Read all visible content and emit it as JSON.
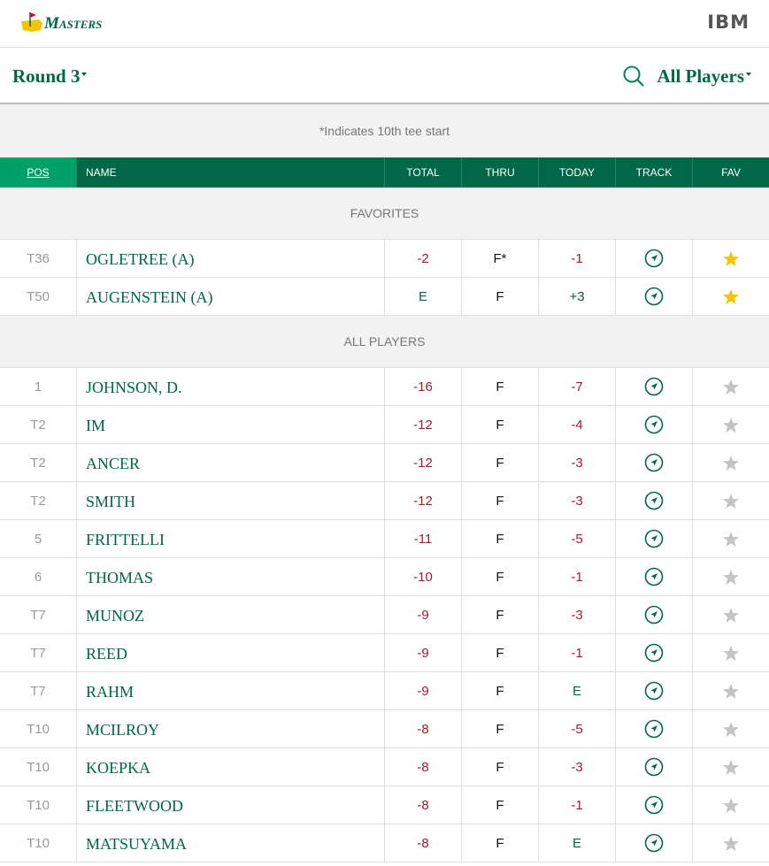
{
  "header": {
    "logo": "Masters",
    "brand": "IBM"
  },
  "controls": {
    "round": "Round 3",
    "filter": "All Players"
  },
  "note": "*Indicates 10th tee start",
  "table": {
    "columns": [
      "POS",
      "NAME",
      "TOTAL",
      "THRU",
      "TODAY",
      "TRACK",
      "FAV"
    ],
    "sections": [
      {
        "title": "FAVORITES",
        "rows": [
          [
            "T36",
            "OGLETREE (A)",
            "-2",
            "F*",
            "-1"
          ],
          [
            "T50",
            "AUGENSTEIN (A)",
            "E",
            "F",
            "+3"
          ]
        ]
      },
      {
        "title": "ALL PLAYERS",
        "rows": [
          [
            "1",
            "JOHNSON, D.",
            "-16",
            "F",
            "-7"
          ],
          [
            "T2",
            "IM",
            "-12",
            "F",
            "-4"
          ],
          [
            "T2",
            "ANCER",
            "-12",
            "F",
            "-3"
          ],
          [
            "T2",
            "SMITH",
            "-12",
            "F",
            "-3"
          ],
          [
            "5",
            "FRITTELLI",
            "-11",
            "F",
            "-5"
          ],
          [
            "6",
            "THOMAS",
            "-10",
            "F",
            "-1"
          ],
          [
            "T7",
            "MUNOZ",
            "-9",
            "F",
            "-3"
          ],
          [
            "T7",
            "REED",
            "-9",
            "F",
            "-1"
          ],
          [
            "T7",
            "RAHM",
            "-9",
            "F",
            "E"
          ],
          [
            "T10",
            "MCILROY",
            "-8",
            "F",
            "-5"
          ],
          [
            "T10",
            "KOEPKA",
            "-8",
            "F",
            "-3"
          ],
          [
            "T10",
            "FLEETWOOD",
            "-8",
            "F",
            "-1"
          ],
          [
            "T10",
            "MATSUYAMA",
            "-8",
            "F",
            "E"
          ]
        ]
      }
    ]
  }
}
